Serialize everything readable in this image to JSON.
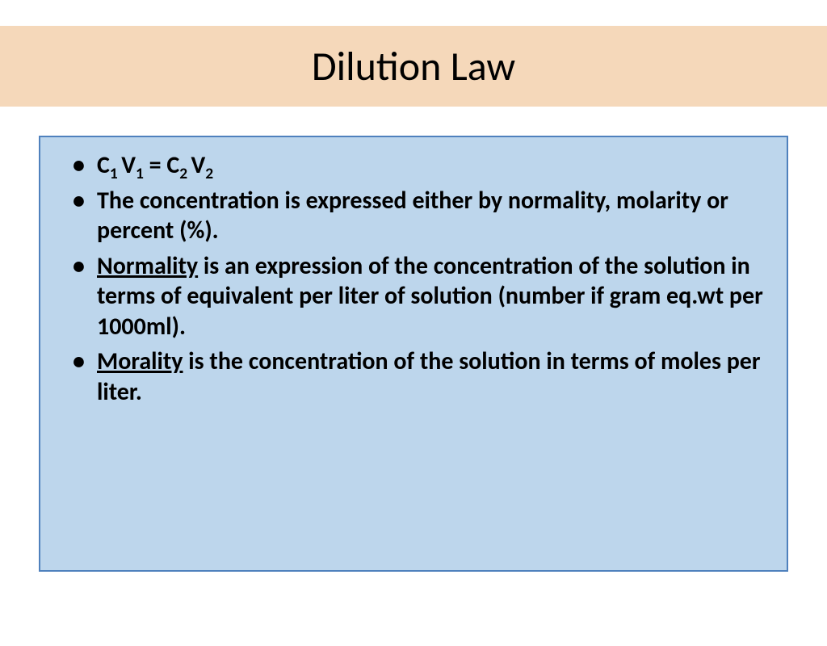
{
  "slide": {
    "title": "Dilution Law",
    "title_color": "#000000",
    "title_fontsize": 50,
    "title_band_color": "#f5d8ba",
    "content_box": {
      "background_color": "#bdd6ec",
      "border_color": "#4f81bd",
      "border_width": 2
    },
    "bullets": [
      {
        "parts": [
          {
            "text": "C",
            "sub": false,
            "underline": false
          },
          {
            "text": "1 ",
            "sub": true,
            "underline": false
          },
          {
            "text": "V",
            "sub": false,
            "underline": false
          },
          {
            "text": "1",
            "sub": true,
            "underline": false
          },
          {
            "text": " = C",
            "sub": false,
            "underline": false
          },
          {
            "text": "2 ",
            "sub": true,
            "underline": false
          },
          {
            "text": "V",
            "sub": false,
            "underline": false
          },
          {
            "text": "2",
            "sub": true,
            "underline": false
          }
        ]
      },
      {
        "parts": [
          {
            "text": "The concentration is expressed either by normality, molarity or percent (%).",
            "sub": false,
            "underline": false
          }
        ]
      },
      {
        "parts": [
          {
            "text": "Normality",
            "sub": false,
            "underline": true
          },
          {
            "text": " is an expression of the concentration of the solution in terms of equivalent per liter of solution (number if gram eq.wt per 1000ml).",
            "sub": false,
            "underline": false
          }
        ]
      },
      {
        "parts": [
          {
            "text": "Morality",
            "sub": false,
            "underline": true
          },
          {
            "text": " is the concentration of the solution in terms of moles per liter.",
            "sub": false,
            "underline": false
          }
        ]
      }
    ],
    "bullet_fontsize": 30,
    "text_color": "#000000",
    "background_color": "#ffffff"
  }
}
